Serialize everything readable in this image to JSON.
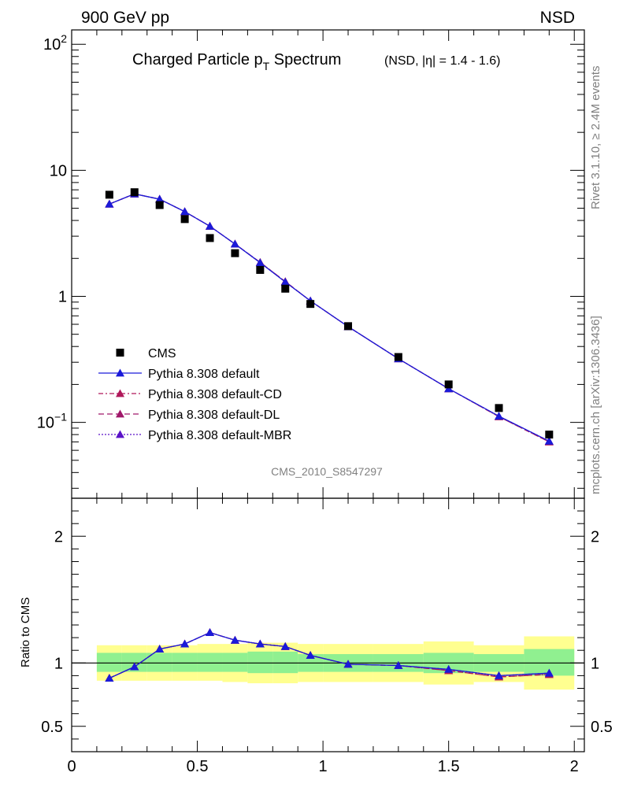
{
  "header": {
    "left": "900 GeV pp",
    "right": "NSD"
  },
  "side_text": {
    "rivet": "Rivet 3.1.10, ≥ 2.4M events",
    "mcplots": "mcplots.cern.ch [arXiv:1306.3436]"
  },
  "chart_data": {
    "type": "scatter",
    "title_main": "Charged Particle p",
    "title_sub": "T",
    "title_main_tail": " Spectrum",
    "title_extra": "(NSD, |η| = 1.4 - 1.6)",
    "analysis_id": "CMS_2010_S8547297",
    "upper": {
      "yscale": "log",
      "ylim": [
        0.025,
        130
      ],
      "yticks": [
        {
          "v": 100,
          "base": "10",
          "exp": "2"
        },
        {
          "v": 10,
          "base": "10",
          "exp": ""
        },
        {
          "v": 1,
          "base": "1",
          "exp": ""
        },
        {
          "v": 0.1,
          "base": "10",
          "exp": "−1"
        }
      ]
    },
    "lower": {
      "ylabel": "Ratio to CMS",
      "ylim": [
        0.3,
        2.3
      ],
      "yticks": [
        "0.5",
        "1",
        "2"
      ],
      "reference_line": 1
    },
    "xlim": [
      0,
      2.04
    ],
    "xticks": [
      "0",
      "0.5",
      "1",
      "1.5",
      "2"
    ],
    "x": [
      0.15,
      0.25,
      0.35,
      0.45,
      0.55,
      0.65,
      0.75,
      0.85,
      0.95,
      1.1,
      1.3,
      1.5,
      1.7,
      1.9
    ],
    "bin_edges": [
      0.1,
      0.2,
      0.3,
      0.4,
      0.5,
      0.6,
      0.7,
      0.8,
      0.9,
      1.0,
      1.2,
      1.4,
      1.6,
      1.8,
      2.0
    ],
    "data": {
      "name": "CMS",
      "color": "#000000",
      "values": [
        6.4,
        6.7,
        5.3,
        4.1,
        2.9,
        2.2,
        1.62,
        1.15,
        0.87,
        0.58,
        0.33,
        0.2,
        0.13,
        0.08
      ]
    },
    "band_inner": [
      0.93,
      0.93,
      0.93,
      0.93,
      0.93,
      0.93,
      0.92,
      0.92,
      0.93,
      0.93,
      0.93,
      0.92,
      0.93,
      0.9
    ],
    "band_inner_top": [
      1.08,
      1.08,
      1.08,
      1.08,
      1.08,
      1.08,
      1.09,
      1.09,
      1.07,
      1.07,
      1.07,
      1.08,
      1.07,
      1.11
    ],
    "band_outer": [
      0.86,
      0.86,
      0.86,
      0.86,
      0.86,
      0.85,
      0.84,
      0.84,
      0.85,
      0.85,
      0.85,
      0.83,
      0.85,
      0.79
    ],
    "band_outer_top": [
      1.14,
      1.14,
      1.14,
      1.14,
      1.15,
      1.15,
      1.16,
      1.16,
      1.15,
      1.15,
      1.15,
      1.17,
      1.14,
      1.21
    ],
    "band_colors": {
      "inner": "#90f090",
      "outer": "#ffff90"
    },
    "series": [
      {
        "name": "Pythia 8.308 default",
        "color": "#1a1ad9",
        "dash": "",
        "upper": [
          5.4,
          6.5,
          5.9,
          4.7,
          3.6,
          2.6,
          1.85,
          1.3,
          0.92,
          0.575,
          0.32,
          0.185,
          0.112,
          0.071
        ],
        "ratio": [
          0.88,
          0.97,
          1.11,
          1.15,
          1.24,
          1.18,
          1.15,
          1.13,
          1.06,
          0.99,
          0.98,
          0.95,
          0.9,
          0.92
        ]
      },
      {
        "name": "Pythia 8.308 default-CD",
        "color": "#b0185a",
        "dash": "6,3,2,3",
        "upper": [
          5.4,
          6.5,
          5.9,
          4.7,
          3.6,
          2.6,
          1.86,
          1.31,
          0.92,
          0.575,
          0.32,
          0.185,
          0.111,
          0.07
        ],
        "ratio": [
          0.88,
          0.97,
          1.11,
          1.15,
          1.24,
          1.18,
          1.15,
          1.13,
          1.06,
          0.99,
          0.98,
          0.94,
          0.89,
          0.91
        ]
      },
      {
        "name": "Pythia 8.308 default-DL",
        "color": "#a0186a",
        "dash": "7,4",
        "upper": [
          5.4,
          6.5,
          5.9,
          4.7,
          3.6,
          2.6,
          1.86,
          1.31,
          0.92,
          0.575,
          0.32,
          0.185,
          0.111,
          0.07
        ],
        "ratio": [
          0.88,
          0.97,
          1.11,
          1.15,
          1.24,
          1.18,
          1.15,
          1.13,
          1.06,
          0.99,
          0.98,
          0.94,
          0.89,
          0.91
        ]
      },
      {
        "name": "Pythia 8.308 default-MBR",
        "color": "#5a12c8",
        "dash": "2,2",
        "upper": [
          5.4,
          6.5,
          5.9,
          4.7,
          3.6,
          2.6,
          1.85,
          1.3,
          0.92,
          0.575,
          0.32,
          0.185,
          0.112,
          0.071
        ],
        "ratio": [
          0.88,
          0.97,
          1.11,
          1.15,
          1.24,
          1.18,
          1.15,
          1.13,
          1.06,
          0.99,
          0.98,
          0.95,
          0.9,
          0.92
        ]
      }
    ]
  }
}
